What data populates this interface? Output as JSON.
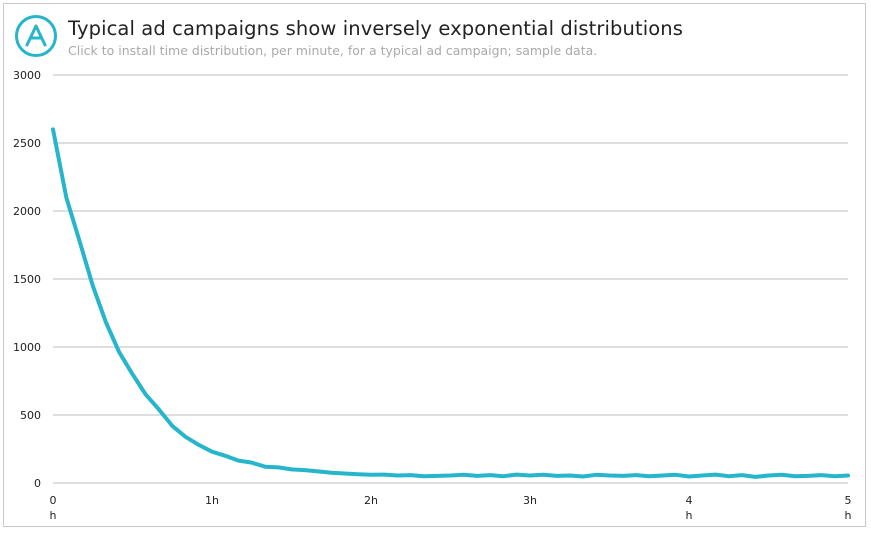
{
  "header": {
    "title": "Typical ad campaigns show inversely exponential distributions",
    "subtitle": "Click to install time distribution, per minute, for a typical ad campaign; sample data.",
    "logo_icon": "brand-logo-icon"
  },
  "colors": {
    "line": "#26b5ca",
    "grid": "#bdbdbd",
    "logo": "#26b5ca"
  },
  "chart_data": {
    "type": "line",
    "title": "Typical ad campaigns show inversely exponential distributions",
    "subtitle": "Click to install time distribution, per minute, for a typical ad campaign; sample data.",
    "xlabel": "",
    "ylabel": "",
    "xlim": [
      0,
      300
    ],
    "ylim": [
      0,
      3000
    ],
    "grid": true,
    "legend": "none",
    "y_ticks": [
      "0",
      "500",
      "1000",
      "1500",
      "2000",
      "2500",
      "3000"
    ],
    "x_ticks": [
      {
        "value": 0,
        "line1": "0",
        "line2": "h"
      },
      {
        "value": 60,
        "line1": "1h",
        "line2": ""
      },
      {
        "value": 120,
        "line1": "2h",
        "line2": ""
      },
      {
        "value": 180,
        "line1": "3h",
        "line2": ""
      },
      {
        "value": 240,
        "line1": "4",
        "line2": "h"
      },
      {
        "value": 300,
        "line1": "5",
        "line2": "h"
      }
    ],
    "series": [
      {
        "x": [
          0,
          5,
          10,
          15,
          20,
          25,
          30,
          35,
          40,
          45,
          50,
          55,
          60,
          65,
          70,
          75,
          80,
          85,
          90,
          95,
          100,
          105,
          110,
          115,
          120,
          125,
          130,
          135,
          140,
          145,
          150,
          155,
          160,
          165,
          170,
          175,
          180,
          185,
          190,
          195,
          200,
          205,
          210,
          215,
          220,
          225,
          230,
          235,
          240,
          245,
          250,
          255,
          260,
          265,
          270,
          275,
          280,
          285,
          290,
          295,
          300
        ],
        "values": [
          2600,
          2100,
          1780,
          1450,
          1180,
          960,
          800,
          650,
          540,
          420,
          340,
          280,
          230,
          200,
          165,
          150,
          120,
          115,
          100,
          95,
          85,
          75,
          70,
          65,
          60,
          62,
          55,
          58,
          50,
          52,
          55,
          60,
          52,
          58,
          50,
          62,
          55,
          60,
          52,
          55,
          48,
          60,
          55,
          52,
          58,
          50,
          55,
          60,
          48,
          55,
          62,
          50,
          58,
          45,
          55,
          60,
          50,
          52,
          58,
          50,
          55
        ]
      }
    ]
  }
}
